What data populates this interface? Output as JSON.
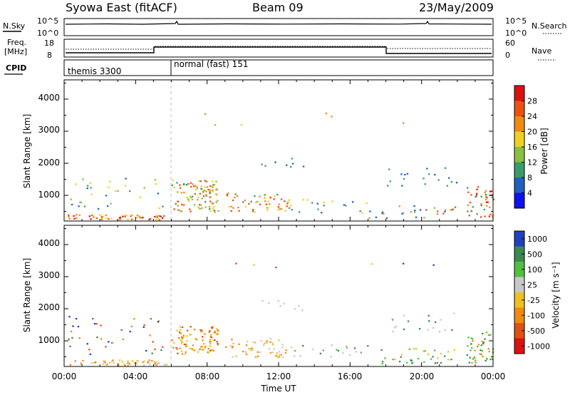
{
  "header": {
    "title": "Syowa East (fitACF)",
    "beam": "Beam 09",
    "date": "23/May/2009"
  },
  "strips": {
    "nsky_label": "N.Sky",
    "nsearch_label": "N.Search",
    "nsky_ticks": [
      "10^5",
      "10^0"
    ],
    "nsky_right_ticks": [
      "10^5",
      "10^0"
    ],
    "freq_label": "Freq.",
    "freq_unit": "[MHz]",
    "freq_ticks": [
      "18",
      "8"
    ],
    "nave_label": "Nave",
    "nave_ticks": [
      "60",
      "0"
    ],
    "cpid_label": "CPID",
    "cpid_modes": [
      "themis 3300",
      "normal (fast) 151"
    ]
  },
  "chart_data": [
    {
      "type": "heatmap",
      "name": "power",
      "ylabel": "Slant Range [km]",
      "xlabel": "",
      "xlim": [
        0,
        24
      ],
      "ylim": [
        200,
        4600
      ],
      "yticks": [
        "1000",
        "2000",
        "3000",
        "4000"
      ],
      "colorbar_label": "Power [dB]",
      "colorbar_ticks": [
        "4",
        "8",
        "12",
        "16",
        "20",
        "24",
        "28"
      ],
      "colorbar_colors": [
        "#1010ee",
        "#2060c0",
        "#3a9a6a",
        "#88c040",
        "#f0d020",
        "#f08a10",
        "#ee5010",
        "#dd1010"
      ]
    },
    {
      "type": "heatmap",
      "name": "velocity",
      "ylabel": "Slant Range [km]",
      "xlabel": "Time UT",
      "xlim": [
        0,
        24
      ],
      "ylim": [
        200,
        4600
      ],
      "yticks": [
        "1000",
        "2000",
        "3000",
        "4000"
      ],
      "xticks": [
        "00:00",
        "04:00",
        "08:00",
        "12:00",
        "16:00",
        "20:00",
        "00:00"
      ],
      "colorbar_label": "Velocity [m s⁻¹]",
      "colorbar_ticks": [
        "1000",
        "500",
        "100",
        "25",
        "-25",
        "-100",
        "-500",
        "-1000"
      ],
      "colorbar_colors": [
        "#2040c0",
        "#3a8a50",
        "#50c040",
        "#c8c8c8",
        "#f0c020",
        "#f08a10",
        "#e05010",
        "#dd1010"
      ]
    }
  ]
}
